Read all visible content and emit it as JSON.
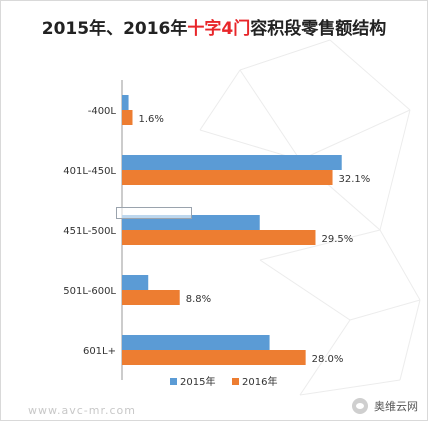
{
  "title": {
    "part1": "2015年、2016年",
    "part2": "十字4门",
    "part3": "容积段零售额结构"
  },
  "colors": {
    "series_2015": "#5b9bd5",
    "series_2016": "#ed7d31",
    "title_highlight": "#e8262a"
  },
  "chart_data": {
    "type": "bar",
    "orientation": "horizontal",
    "categories": [
      "-400L",
      "401L-450L",
      "451L-500L",
      "501L-600L",
      "601L+"
    ],
    "series": [
      {
        "name": "2015年",
        "values": [
          1.0,
          33.5,
          21.0,
          4.0,
          22.5
        ]
      },
      {
        "name": "2016年",
        "values": [
          1.6,
          32.1,
          29.5,
          8.8,
          28.0
        ]
      }
    ],
    "data_labels": [
      "1.6%",
      "32.1%",
      "29.5%",
      "8.8%",
      "28.0%"
    ],
    "xlim": [
      0,
      34
    ],
    "grid": false,
    "legend_position": "bottom"
  },
  "legend": {
    "items": [
      {
        "label": "2015年"
      },
      {
        "label": "2016年"
      }
    ]
  },
  "footer": {
    "watermark": "www.avc-mr.com",
    "brand": "奥维云网"
  }
}
